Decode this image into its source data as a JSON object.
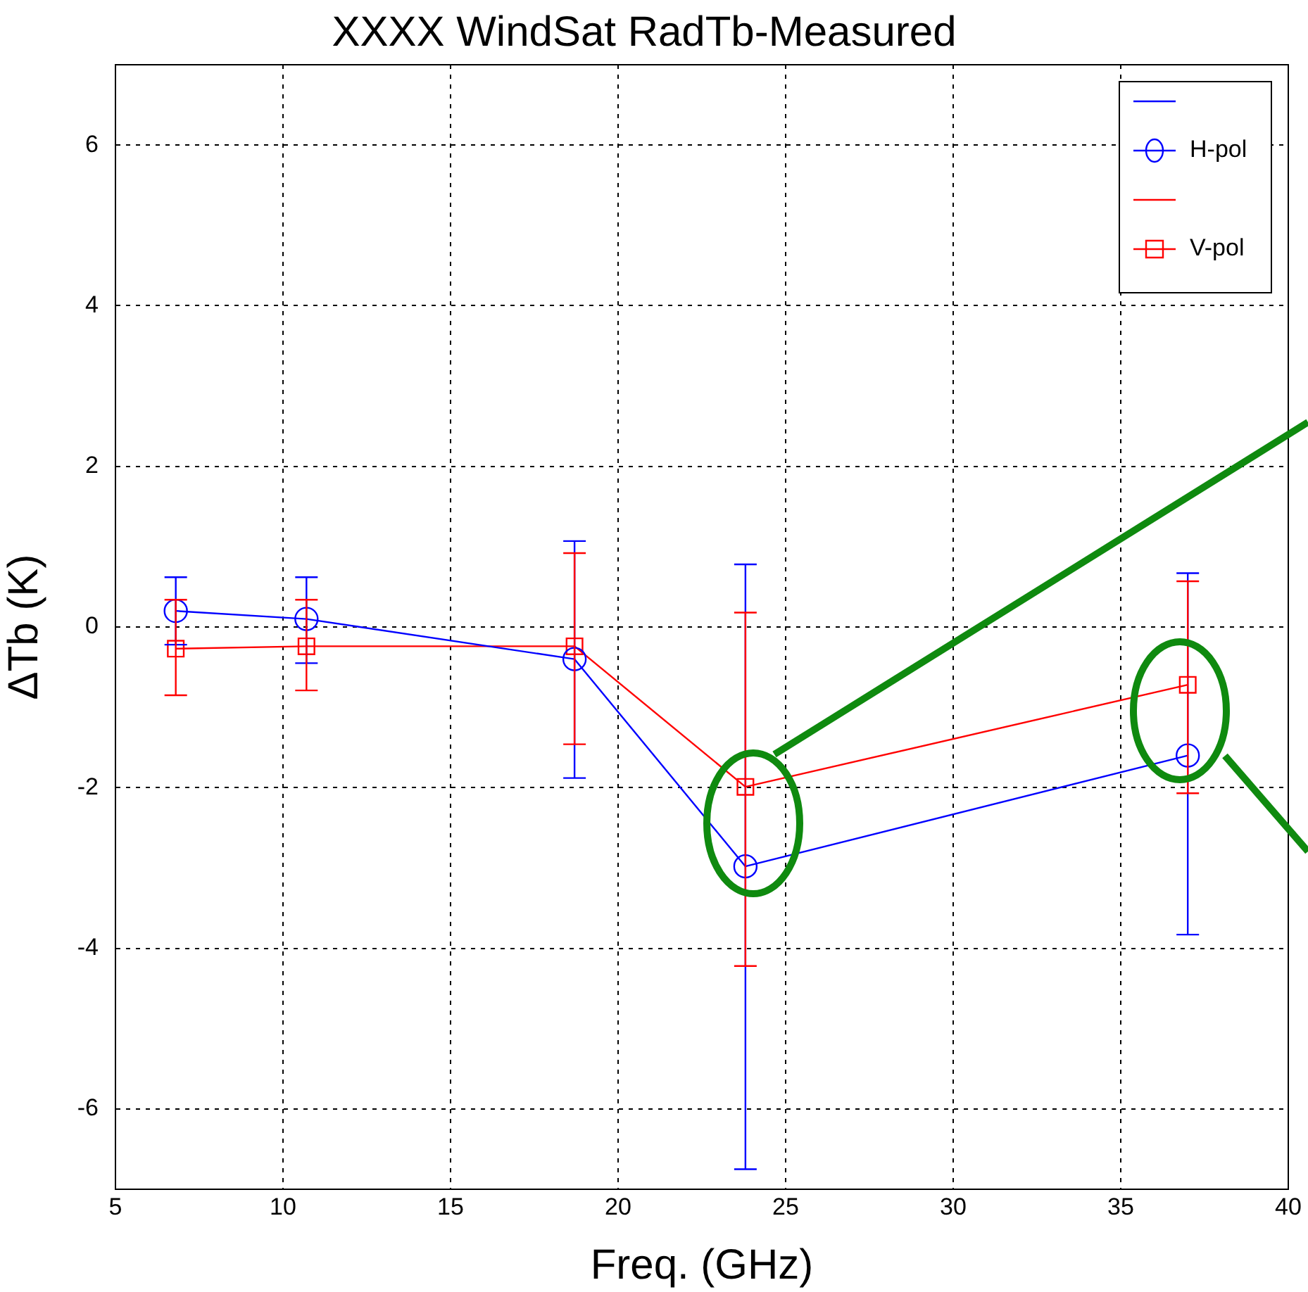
{
  "chart_data": {
    "type": "line",
    "title": "XXXX WindSat RadTb-Measured",
    "xlabel": "Freq. (GHz)",
    "ylabel": "ΔTb (K)",
    "x": [
      6.8,
      10.7,
      18.7,
      23.8,
      37.0
    ],
    "series": [
      {
        "name": "H-pol",
        "color": "#0000ff",
        "marker": "circle",
        "values": [
          0.2,
          0.1,
          -0.4,
          -2.98,
          -1.6
        ],
        "errors": [
          [
            -0.22,
            0.62
          ],
          [
            -0.45,
            0.62
          ],
          [
            -1.88,
            1.07
          ],
          [
            -6.75,
            0.78
          ],
          [
            -3.83,
            0.67
          ]
        ]
      },
      {
        "name": "V-pol",
        "color": "#ff0000",
        "marker": "square",
        "values": [
          -0.27,
          -0.24,
          -0.24,
          -1.99,
          -0.72
        ],
        "errors": [
          [
            -0.85,
            0.34
          ],
          [
            -0.79,
            0.34
          ],
          [
            -1.46,
            0.92
          ],
          [
            -4.22,
            0.18
          ],
          [
            -2.07,
            0.57
          ]
        ]
      }
    ],
    "xlim": [
      5,
      40
    ],
    "xticks": [
      5,
      10,
      15,
      20,
      25,
      30,
      35,
      40
    ],
    "ylim": [
      -7,
      7
    ],
    "yticks": [
      -6,
      -4,
      -2,
      0,
      2,
      4,
      6
    ],
    "grid": true,
    "legend": "top right",
    "line_style": "solid"
  }
}
